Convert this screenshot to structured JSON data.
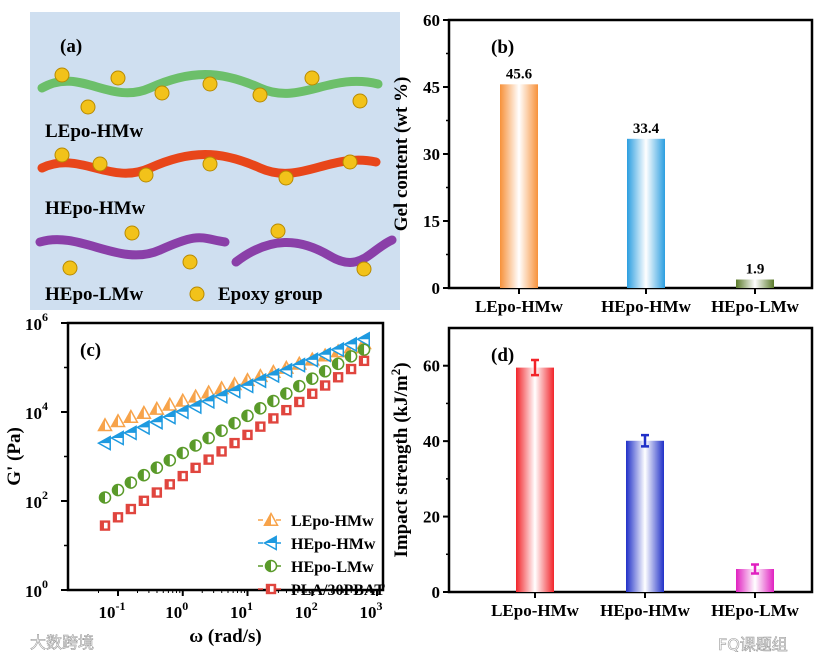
{
  "panel_a": {
    "tag": "(a)",
    "labels": [
      "LEpo-HMw",
      "HEpo-HMw",
      "HEpo-LMw"
    ],
    "legend": "Epoxy group",
    "colors": {
      "LEpo-HMw": "#6cbf6a",
      "HEpo-HMw": "#e8461a",
      "HEpo-LMw": "#8a3fa8",
      "epoxy": "#f2c21a",
      "bg": "#cfdff0"
    }
  },
  "watermarks": [
    "大数跨境",
    "FQ课题组"
  ],
  "chart_data": [
    {
      "panel": "(b)",
      "type": "bar",
      "categories": [
        "LEpo-HMw",
        "HEpo-HMw",
        "HEpo-LMw"
      ],
      "values": [
        45.6,
        33.4,
        1.9
      ],
      "data_labels": [
        "45.6",
        "33.4",
        "1.9"
      ],
      "ylabel": "Gel content (wt %)",
      "xlabel": "",
      "ylim": [
        0,
        60
      ],
      "yticks": [
        0,
        15,
        30,
        45,
        60
      ],
      "colors": [
        "#f7913a",
        "#2b9ee0",
        "#5a7a2a"
      ]
    },
    {
      "panel": "(c)",
      "type": "scatter",
      "xscale": "log",
      "yscale": "log",
      "xlabel": "ω (rad/s)",
      "ylabel": "G' (Pa)",
      "xlim": [
        0.04,
        1000
      ],
      "ylim": [
        1,
        1000000
      ],
      "xticks": [
        {
          "v": 0.1,
          "b": "10",
          "e": "-1"
        },
        {
          "v": 1,
          "b": "10",
          "e": "0"
        },
        {
          "v": 10,
          "b": "10",
          "e": "1"
        },
        {
          "v": 100,
          "b": "10",
          "e": "2"
        },
        {
          "v": 1000,
          "b": "10",
          "e": "3"
        }
      ],
      "yticks": [
        {
          "v": 1,
          "b": "10",
          "e": "0"
        },
        {
          "v": 100,
          "b": "10",
          "e": "2"
        },
        {
          "v": 10000,
          "b": "10",
          "e": "4"
        },
        {
          "v": 1000000,
          "b": "10",
          "e": "6"
        }
      ],
      "legend_position": "bottom-right",
      "x": [
        0.063,
        0.1,
        0.158,
        0.251,
        0.398,
        0.631,
        1,
        1.58,
        2.51,
        3.98,
        6.31,
        10,
        15.8,
        25.1,
        39.8,
        63.1,
        100,
        158,
        251,
        398,
        631
      ],
      "series": [
        {
          "name": "LEpo-HMw",
          "marker": "triangle-up",
          "color": "#f7a34a",
          "values": [
            5012,
            6200,
            7700,
            9500,
            11700,
            14500,
            17900,
            22100,
            27400,
            33900,
            41900,
            51800,
            64000,
            79000,
            97700,
            121000,
            150000,
            185000,
            229000,
            283000,
            350000
          ]
        },
        {
          "name": "HEpo-HMw",
          "marker": "triangle-left",
          "color": "#1e9ae0",
          "values": [
            2000,
            2600,
            3400,
            4500,
            5900,
            7700,
            10100,
            13200,
            17300,
            22600,
            29500,
            38600,
            50500,
            66000,
            86300,
            113000,
            148000,
            193000,
            252000,
            330000,
            430000
          ]
        },
        {
          "name": "HEpo-LMw",
          "marker": "circle-half",
          "color": "#5a9a2a",
          "values": [
            120,
            176,
            259,
            380,
            560,
            820,
            1200,
            1770,
            2600,
            3800,
            5600,
            8200,
            12100,
            17700,
            26000,
            38200,
            56100,
            82300,
            121000,
            178000,
            251000
          ]
        },
        {
          "name": "PLA/30PBAT",
          "marker": "square-half",
          "color": "#e0453e",
          "values": [
            28,
            43,
            66,
            101,
            155,
            237,
            363,
            556,
            851,
            1300,
            2000,
            3060,
            4690,
            7180,
            11000,
            16800,
            25700,
            39400,
            60300,
            92300,
            141000
          ]
        }
      ]
    },
    {
      "panel": "(d)",
      "type": "bar",
      "categories": [
        "LEpo-HMw",
        "HEpo-HMw",
        "HEpo-LMw"
      ],
      "values": [
        59.5,
        40.1,
        6.1
      ],
      "errors": [
        2.0,
        1.5,
        1.2
      ],
      "ylabel": "Impact strength (kJ/m²)",
      "ylabel_main": "Impact strength (kJ/m",
      "ylabel_sup": "2",
      "ylabel_end": ")",
      "xlabel": "",
      "ylim": [
        0,
        70
      ],
      "yticks": [
        0,
        20,
        40,
        60
      ],
      "colors": [
        "#f2242a",
        "#2030c8",
        "#e020c0"
      ]
    }
  ]
}
